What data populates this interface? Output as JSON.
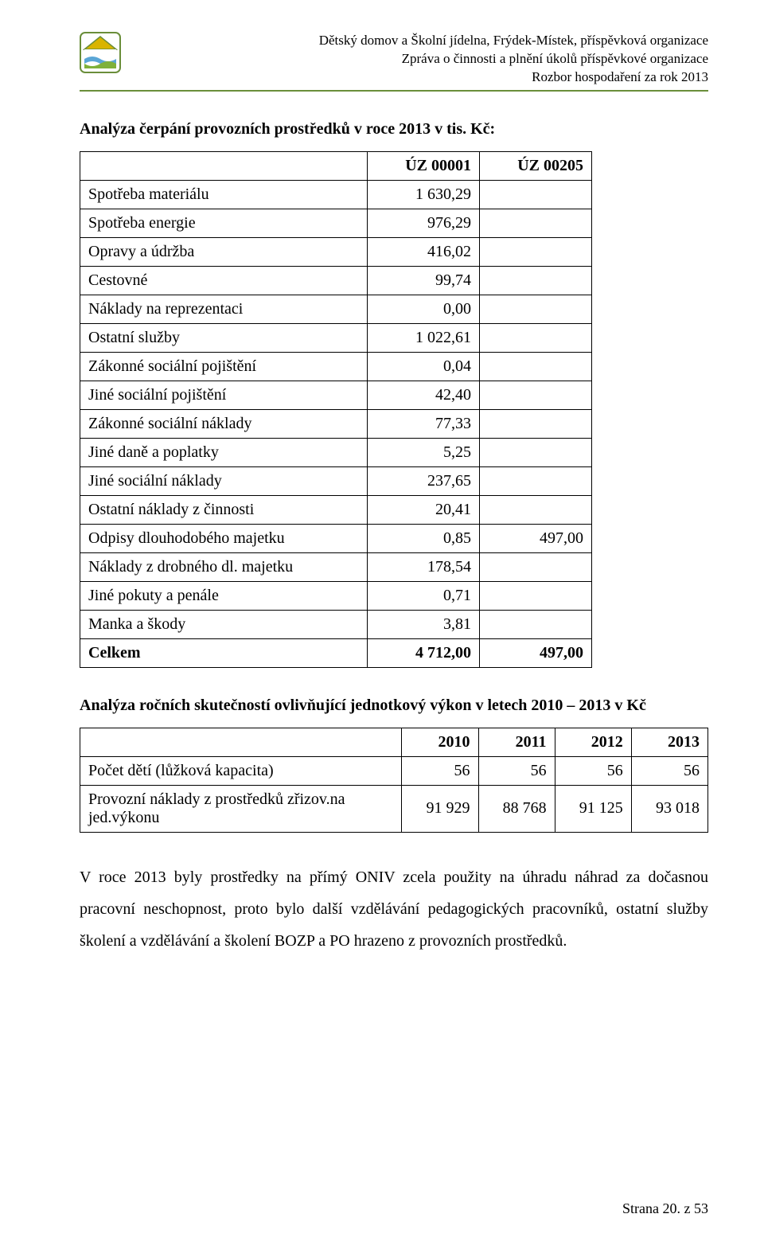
{
  "header": {
    "lines": [
      "Dětský domov a Školní jídelna, Frýdek-Místek, příspěvková organizace",
      "Zpráva o činnosti a plnění úkolů příspěvkové organizace",
      "Rozbor hospodaření za rok 2013"
    ],
    "rule_color": "#6a8e3a"
  },
  "logo": {
    "roof_color": "#d9b400",
    "wall_color": "#ffffff",
    "water_color": "#5aa6d6",
    "grass_color": "#7fb13a",
    "outline_color": "#6a8e3a"
  },
  "section1": {
    "title": "Analýza čerpání provozních prostředků v roce 2013 v tis. Kč:"
  },
  "table1": {
    "type": "table",
    "background_color": "#ffffff",
    "border_color": "#000000",
    "fontsize": 20,
    "columns": [
      "",
      "ÚZ 00001",
      "ÚZ 00205"
    ],
    "rows": [
      {
        "label": "Spotřeba materiálu",
        "c1": "1 630,29",
        "c2": ""
      },
      {
        "label": "Spotřeba energie",
        "c1": "976,29",
        "c2": ""
      },
      {
        "label": "Opravy a údržba",
        "c1": "416,02",
        "c2": ""
      },
      {
        "label": "Cestovné",
        "c1": "99,74",
        "c2": ""
      },
      {
        "label": "Náklady na reprezentaci",
        "c1": "0,00",
        "c2": ""
      },
      {
        "label": "Ostatní služby",
        "c1": "1 022,61",
        "c2": ""
      },
      {
        "label": "Zákonné sociální pojištění",
        "c1": "0,04",
        "c2": ""
      },
      {
        "label": "Jiné sociální pojištění",
        "c1": "42,40",
        "c2": ""
      },
      {
        "label": "Zákonné sociální náklady",
        "c1": "77,33",
        "c2": ""
      },
      {
        "label": "Jiné daně a poplatky",
        "c1": "5,25",
        "c2": ""
      },
      {
        "label": "Jiné sociální náklady",
        "c1": "237,65",
        "c2": ""
      },
      {
        "label": "Ostatní náklady z činnosti",
        "c1": "20,41",
        "c2": ""
      },
      {
        "label": "Odpisy dlouhodobého majetku",
        "c1": "0,85",
        "c2": "497,00"
      },
      {
        "label": "Náklady z drobného dl. majetku",
        "c1": "178,54",
        "c2": ""
      },
      {
        "label": "Jiné pokuty a penále",
        "c1": "0,71",
        "c2": ""
      },
      {
        "label": "Manka a škody",
        "c1": "3,81",
        "c2": ""
      }
    ],
    "total": {
      "label": "Celkem",
      "c1": "4 712,00",
      "c2": "497,00"
    }
  },
  "section2": {
    "title": "Analýza ročních skutečností ovlivňující jednotkový výkon v letech 2010 – 2013 v Kč"
  },
  "table2": {
    "type": "table",
    "background_color": "#ffffff",
    "border_color": "#000000",
    "fontsize": 20,
    "columns": [
      "",
      "2010",
      "2011",
      "2012",
      "2013"
    ],
    "rows": [
      {
        "label": "Počet dětí (lůžková kapacita)",
        "c1": "56",
        "c2": "56",
        "c3": "56",
        "c4": "56"
      },
      {
        "label": "Provozní náklady z prostředků zřizov.na jed.výkonu",
        "c1": "91 929",
        "c2": "88 768",
        "c3": "91 125",
        "c4": "93 018"
      }
    ]
  },
  "body_paragraph": "V roce 2013 byly prostředky na přímý ONIV zcela použity na úhradu náhrad za dočasnou pracovní neschopnost, proto bylo další vzdělávání pedagogických pracovníků, ostatní služby školení a vzdělávání a školení BOZP a PO hrazeno z provozních prostředků.",
  "footer": "Strana 20. z 53"
}
